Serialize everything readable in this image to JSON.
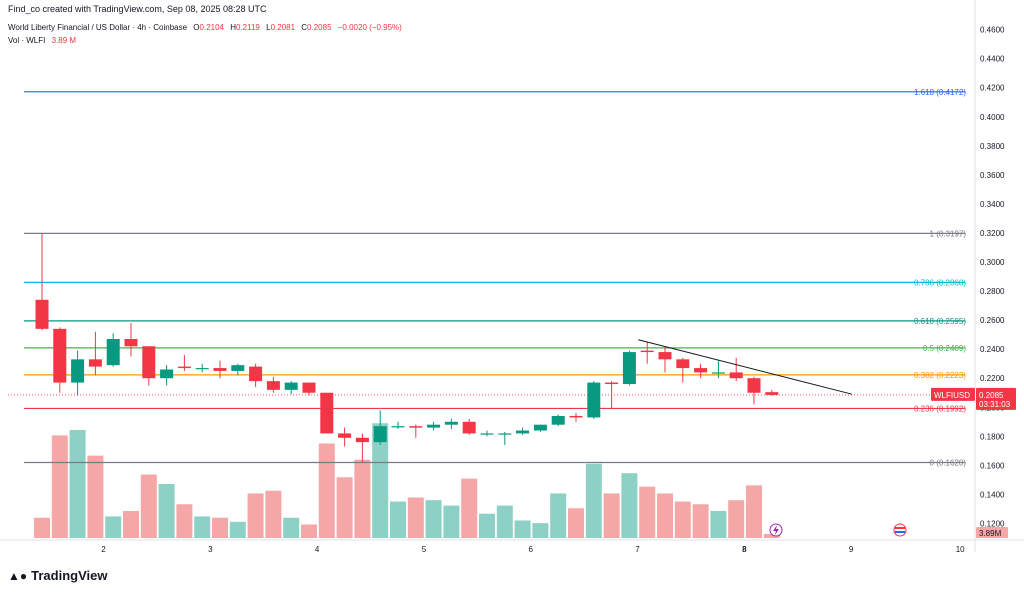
{
  "credit": "Find_co created with TradingView.com, Sep 08, 2025 08:28 UTC",
  "legend": {
    "title": "World Liberty Financial / US Dollar · 4h · Coinbase",
    "o_label": "O",
    "o_value": "0.2104",
    "h_label": "H",
    "h_value": "0.2119",
    "l_label": "L",
    "l_value": "0.2081",
    "c_label": "C",
    "c_value": "0.2085",
    "change": "−0.0020 (−0.95%)"
  },
  "volume_legend": {
    "label": "Vol · WLFI",
    "value": "3.89 M"
  },
  "brand": "TradingView",
  "colors": {
    "up": "#089981",
    "down": "#f23645",
    "up_vol": "#8dd0c6",
    "down_vol": "#f5a6a7"
  },
  "chart_data": {
    "type": "candlestick",
    "symbol": "WLFIUSD",
    "last_price": "0.2085",
    "countdown": "03:31:03",
    "volume_label": "3.89M",
    "y_ticks": [
      "0.1200",
      "0.1400",
      "0.1600",
      "0.1800",
      "0.2000",
      "0.2200",
      "0.2400",
      "0.2600",
      "0.2800",
      "0.3000",
      "0.3200",
      "0.3400",
      "0.3600",
      "0.3800",
      "0.4000",
      "0.4200",
      "0.4400",
      "0.4600"
    ],
    "ylim": [
      0.11,
      0.468
    ],
    "x_labels": [
      {
        "label": "2",
        "bar": 3.5
      },
      {
        "label": "3",
        "bar": 9.5
      },
      {
        "label": "4",
        "bar": 15.5
      },
      {
        "label": "5",
        "bar": 21.5
      },
      {
        "label": "6",
        "bar": 27.5
      },
      {
        "label": "7",
        "bar": 33.5
      },
      {
        "label": "8",
        "bar": 39.5
      },
      {
        "label": "9",
        "bar": 45.5
      },
      {
        "label": "10",
        "bar": 51.5
      }
    ],
    "fib_levels": [
      {
        "label": "1.618 (0.4172)",
        "value": 0.4172,
        "color": "#2962ff"
      },
      {
        "label": "1 (0.3197)",
        "value": 0.3197,
        "color": "#787b86"
      },
      {
        "label": "0.786 (0.2860)",
        "value": 0.286,
        "color": "#00bcd4"
      },
      {
        "label": "0.618 (0.2595)",
        "value": 0.2595,
        "color": "#089981"
      },
      {
        "label": "0.5 (0.2409)",
        "value": 0.2409,
        "color": "#4caf50"
      },
      {
        "label": "0.382 (0.2223)",
        "value": 0.2223,
        "color": "#ff9800"
      },
      {
        "label": "0.236 (0.1992)",
        "value": 0.1992,
        "color": "#f23645"
      },
      {
        "label": "0 (0.1620)",
        "value": 0.162,
        "color": "#787b86"
      }
    ],
    "trendline": {
      "from": [
        33.5,
        0.2465
      ],
      "to": [
        45.5,
        0.209
      ]
    },
    "candles": [
      {
        "o": 0.274,
        "h": 0.32,
        "l": 0.253,
        "c": 0.254,
        "v": 0.15
      },
      {
        "o": 0.254,
        "h": 0.255,
        "l": 0.21,
        "c": 0.217,
        "v": 0.76
      },
      {
        "o": 0.217,
        "h": 0.239,
        "l": 0.208,
        "c": 0.233,
        "v": 0.8
      },
      {
        "o": 0.233,
        "h": 0.252,
        "l": 0.222,
        "c": 0.228,
        "v": 0.61
      },
      {
        "o": 0.229,
        "h": 0.251,
        "l": 0.228,
        "c": 0.247,
        "v": 0.16
      },
      {
        "o": 0.247,
        "h": 0.258,
        "l": 0.235,
        "c": 0.242,
        "v": 0.2
      },
      {
        "o": 0.242,
        "h": 0.242,
        "l": 0.215,
        "c": 0.22,
        "v": 0.47
      },
      {
        "o": 0.22,
        "h": 0.229,
        "l": 0.215,
        "c": 0.226,
        "v": 0.4
      },
      {
        "o": 0.228,
        "h": 0.236,
        "l": 0.225,
        "c": 0.227,
        "v": 0.25
      },
      {
        "o": 0.227,
        "h": 0.23,
        "l": 0.224,
        "c": 0.227,
        "v": 0.16
      },
      {
        "o": 0.227,
        "h": 0.232,
        "l": 0.22,
        "c": 0.225,
        "v": 0.15
      },
      {
        "o": 0.225,
        "h": 0.23,
        "l": 0.222,
        "c": 0.229,
        "v": 0.12
      },
      {
        "o": 0.228,
        "h": 0.23,
        "l": 0.214,
        "c": 0.218,
        "v": 0.33
      },
      {
        "o": 0.218,
        "h": 0.221,
        "l": 0.21,
        "c": 0.212,
        "v": 0.35
      },
      {
        "o": 0.212,
        "h": 0.218,
        "l": 0.209,
        "c": 0.217,
        "v": 0.15
      },
      {
        "o": 0.217,
        "h": 0.217,
        "l": 0.208,
        "c": 0.21,
        "v": 0.1
      },
      {
        "o": 0.21,
        "h": 0.21,
        "l": 0.182,
        "c": 0.182,
        "v": 0.7
      },
      {
        "o": 0.182,
        "h": 0.186,
        "l": 0.173,
        "c": 0.179,
        "v": 0.45
      },
      {
        "o": 0.179,
        "h": 0.182,
        "l": 0.162,
        "c": 0.176,
        "v": 0.58
      },
      {
        "o": 0.176,
        "h": 0.198,
        "l": 0.174,
        "c": 0.187,
        "v": 0.85
      },
      {
        "o": 0.187,
        "h": 0.19,
        "l": 0.185,
        "c": 0.187,
        "v": 0.27
      },
      {
        "o": 0.187,
        "h": 0.188,
        "l": 0.179,
        "c": 0.186,
        "v": 0.3
      },
      {
        "o": 0.186,
        "h": 0.19,
        "l": 0.184,
        "c": 0.188,
        "v": 0.28
      },
      {
        "o": 0.188,
        "h": 0.192,
        "l": 0.185,
        "c": 0.19,
        "v": 0.24
      },
      {
        "o": 0.19,
        "h": 0.192,
        "l": 0.181,
        "c": 0.182,
        "v": 0.44
      },
      {
        "o": 0.182,
        "h": 0.184,
        "l": 0.18,
        "c": 0.182,
        "v": 0.18
      },
      {
        "o": 0.182,
        "h": 0.183,
        "l": 0.174,
        "c": 0.182,
        "v": 0.24
      },
      {
        "o": 0.182,
        "h": 0.186,
        "l": 0.181,
        "c": 0.184,
        "v": 0.13
      },
      {
        "o": 0.184,
        "h": 0.188,
        "l": 0.183,
        "c": 0.188,
        "v": 0.11
      },
      {
        "o": 0.188,
        "h": 0.195,
        "l": 0.187,
        "c": 0.194,
        "v": 0.33
      },
      {
        "o": 0.194,
        "h": 0.196,
        "l": 0.19,
        "c": 0.193,
        "v": 0.22
      },
      {
        "o": 0.193,
        "h": 0.218,
        "l": 0.192,
        "c": 0.217,
        "v": 0.55
      },
      {
        "o": 0.217,
        "h": 0.218,
        "l": 0.199,
        "c": 0.216,
        "v": 0.33
      },
      {
        "o": 0.216,
        "h": 0.239,
        "l": 0.215,
        "c": 0.238,
        "v": 0.48
      },
      {
        "o": 0.239,
        "h": 0.245,
        "l": 0.23,
        "c": 0.238,
        "v": 0.38
      },
      {
        "o": 0.238,
        "h": 0.242,
        "l": 0.224,
        "c": 0.233,
        "v": 0.33
      },
      {
        "o": 0.233,
        "h": 0.234,
        "l": 0.217,
        "c": 0.227,
        "v": 0.27
      },
      {
        "o": 0.227,
        "h": 0.23,
        "l": 0.22,
        "c": 0.224,
        "v": 0.25
      },
      {
        "o": 0.224,
        "h": 0.232,
        "l": 0.22,
        "c": 0.224,
        "v": 0.2
      },
      {
        "o": 0.224,
        "h": 0.234,
        "l": 0.218,
        "c": 0.22,
        "v": 0.28
      },
      {
        "o": 0.22,
        "h": 0.221,
        "l": 0.202,
        "c": 0.21,
        "v": 0.39
      },
      {
        "o": 0.2104,
        "h": 0.2119,
        "l": 0.2081,
        "c": 0.2085,
        "v": 0.03
      }
    ]
  }
}
